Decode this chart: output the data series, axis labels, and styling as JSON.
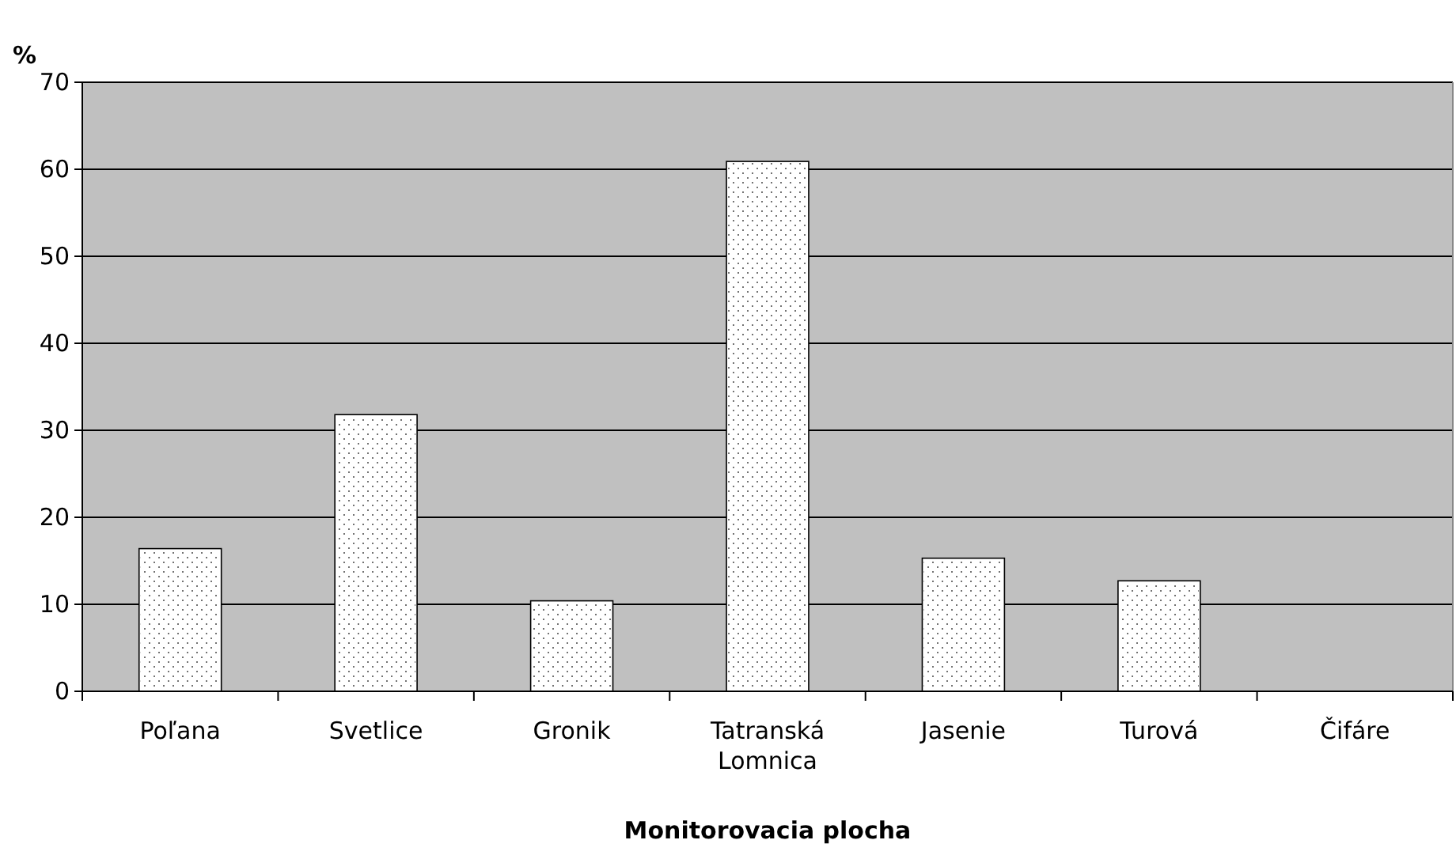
{
  "chart_data": {
    "type": "bar",
    "ylabel": "%",
    "xlabel": "Monitorovacia plocha",
    "categories": [
      "Poľana",
      "Svetlice",
      "Gronik",
      "Tatranská Lomnica",
      "Jasenie",
      "Turová",
      "Čifáre"
    ],
    "values": [
      16.4,
      31.8,
      10.4,
      60.9,
      15.3,
      12.7,
      0
    ],
    "color": "#ffffff",
    "ylim": [
      0,
      70
    ],
    "yticks": [
      0,
      10,
      20,
      30,
      40,
      50,
      60,
      70
    ],
    "grid": "y"
  }
}
